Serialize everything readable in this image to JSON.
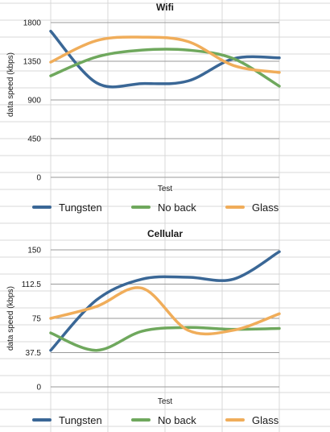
{
  "spreadsheet_bg": {
    "line_color": "#d8d8d8"
  },
  "charts": [
    {
      "title": "Wifi",
      "xlabel": "Test",
      "ylabel": "data speed (kbps)",
      "chart_data": {
        "type": "line",
        "smooth": true,
        "title": "Wifi",
        "xlabel": "Test",
        "ylabel": "data speed (kbps)",
        "ylim": [
          0,
          1800
        ],
        "yticks": [
          "1800",
          "1350",
          "900",
          "450",
          "0"
        ],
        "ytick_values": [
          1800,
          1350,
          900,
          450,
          0
        ],
        "x": [
          1,
          2,
          3,
          4,
          5,
          6
        ],
        "series": [
          {
            "name": "Tungsten",
            "color": "#3a6796",
            "values": [
              1700,
              1100,
              1090,
              1120,
              1380,
              1390
            ]
          },
          {
            "name": "No back",
            "color": "#6fa85d",
            "values": [
              1180,
              1400,
              1480,
              1480,
              1380,
              1060
            ]
          },
          {
            "name": "Glass",
            "color": "#f0ad5a",
            "values": [
              1340,
              1590,
              1630,
              1580,
              1300,
              1220
            ]
          }
        ],
        "grid": true,
        "legend_position": "bottom"
      }
    },
    {
      "title": "Cellular",
      "xlabel": "Test",
      "ylabel": "data speed (kbps)",
      "chart_data": {
        "type": "line",
        "smooth": true,
        "title": "Cellular",
        "xlabel": "Test",
        "ylabel": "data speed (kbps)",
        "ylim": [
          0,
          150
        ],
        "yticks": [
          "150",
          "112.5",
          "75",
          "37.5",
          "0"
        ],
        "ytick_values": [
          150,
          112.5,
          75,
          37.5,
          0
        ],
        "x": [
          1,
          2,
          3,
          4,
          5,
          6
        ],
        "series": [
          {
            "name": "Tungsten",
            "color": "#3a6796",
            "values": [
              40,
              95,
              118,
              120,
              118,
              148
            ]
          },
          {
            "name": "No back",
            "color": "#6fa85d",
            "values": [
              59,
              40,
              61,
              65,
              63,
              64
            ]
          },
          {
            "name": "Glass",
            "color": "#f0ad5a",
            "values": [
              75,
              88,
              108,
              62,
              62,
              80
            ]
          }
        ],
        "grid": true,
        "legend_position": "bottom"
      }
    }
  ]
}
